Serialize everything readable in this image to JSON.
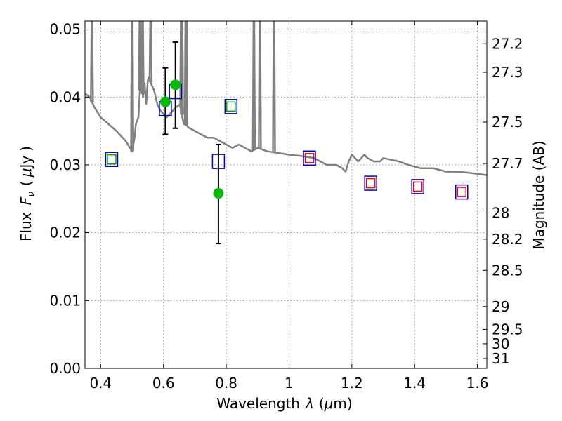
{
  "chart_data": {
    "type": "scatter",
    "xlabel": "Wavelength",
    "xlabel_symbol": "λ",
    "xlabel_unit_prefix": "(",
    "xlabel_unit_mu": "μ",
    "xlabel_unit_rest": "m)",
    "ylabel_word": "Flux",
    "ylabel_symbol": "F",
    "ylabel_subscript": "ν",
    "ylabel_paren_open": "(",
    "ylabel_mu": "μ",
    "ylabel_unit": "Jy",
    "ylabel_paren_close": ")",
    "y2label": "Magnitude (AB)",
    "xlim": [
      0.35,
      1.63
    ],
    "ylim": [
      0.0,
      0.0512
    ],
    "grid": true,
    "x_ticks": [
      0.4,
      0.6,
      0.8,
      1.0,
      1.2,
      1.4,
      1.6
    ],
    "x_tick_labels": [
      "0.4",
      "0.6",
      "0.8",
      "1",
      "1.2",
      "1.4",
      "1.6"
    ],
    "y_ticks": [
      0.0,
      0.01,
      0.02,
      0.03,
      0.04,
      0.05
    ],
    "y_tick_labels": [
      "0.00",
      "0.01",
      "0.02",
      "0.03",
      "0.04",
      "0.05"
    ],
    "y2_ticks": [
      27.2,
      27.3,
      27.5,
      27.7,
      28,
      28.2,
      28.5,
      29,
      29.5,
      30,
      31
    ],
    "y2_tick_labels": [
      "27.2",
      "27.3",
      "27.5",
      "27.7",
      "28",
      "28.2",
      "28.5",
      "29",
      "29.5",
      "30",
      "31"
    ],
    "colors": {
      "model": "#808080",
      "observed": "#00bb00",
      "model_flux_box": "#0000cc",
      "hst_box": "#00aa00",
      "ir_box": "#ff0000",
      "errorbar": "#000000"
    },
    "series": [
      {
        "kind": "model-spectrum",
        "x": [
          0.35,
          0.365,
          0.38,
          0.4,
          0.42,
          0.45,
          0.48,
          0.5,
          0.508,
          0.512,
          0.52,
          0.525,
          0.53,
          0.535,
          0.54,
          0.545,
          0.55,
          0.555,
          0.56,
          0.57,
          0.58,
          0.59,
          0.6,
          0.61,
          0.62,
          0.64,
          0.655,
          0.66,
          0.665,
          0.67,
          0.68,
          0.7,
          0.72,
          0.74,
          0.76,
          0.78,
          0.8,
          0.82,
          0.84,
          0.86,
          0.88,
          0.9,
          0.93,
          0.96,
          1.0,
          1.04,
          1.08,
          1.1,
          1.12,
          1.15,
          1.17,
          1.18,
          1.19,
          1.2,
          1.22,
          1.24,
          1.25,
          1.27,
          1.29,
          1.3,
          1.32,
          1.35,
          1.38,
          1.42,
          1.46,
          1.5,
          1.54,
          1.58,
          1.63
        ],
        "y": [
          0.0405,
          0.04,
          0.0385,
          0.037,
          0.0362,
          0.035,
          0.0335,
          0.032,
          0.034,
          0.036,
          0.037,
          0.041,
          0.0415,
          0.04,
          0.042,
          0.039,
          0.0425,
          0.043,
          0.042,
          0.041,
          0.039,
          0.038,
          0.0375,
          0.037,
          0.0375,
          0.0385,
          0.039,
          0.037,
          0.036,
          0.036,
          0.0355,
          0.035,
          0.0345,
          0.034,
          0.034,
          0.0335,
          0.033,
          0.0325,
          0.033,
          0.0325,
          0.032,
          0.0325,
          0.032,
          0.0318,
          0.0315,
          0.0313,
          0.031,
          0.0305,
          0.03,
          0.03,
          0.0295,
          0.029,
          0.0305,
          0.0315,
          0.0305,
          0.0315,
          0.031,
          0.0305,
          0.0305,
          0.031,
          0.0308,
          0.0305,
          0.03,
          0.0295,
          0.0295,
          0.029,
          0.029,
          0.0288,
          0.0285
        ]
      },
      {
        "kind": "emission-lines",
        "x": [
          0.372,
          0.5,
          0.5005,
          0.525,
          0.5335,
          0.559,
          0.6565,
          0.659,
          0.6585,
          0.671,
          0.673,
          0.888,
          0.907,
          0.952
        ]
      },
      {
        "kind": "observed",
        "x": [
          0.606,
          0.638,
          0.775
        ],
        "y": [
          0.0393,
          0.0418,
          0.0258
        ],
        "err_low": [
          0.0345,
          0.0354,
          0.0184
        ],
        "err_high": [
          0.0443,
          0.0481,
          0.033
        ]
      },
      {
        "kind": "model-flux",
        "x": [
          0.435,
          0.606,
          0.638,
          0.775,
          0.815,
          1.065,
          1.26,
          1.41,
          1.55
        ],
        "y": [
          0.0308,
          0.0383,
          0.0408,
          0.0305,
          0.0386,
          0.031,
          0.0273,
          0.0268,
          0.026
        ]
      },
      {
        "kind": "hst-optical",
        "x": [
          0.435,
          0.815
        ],
        "y": [
          0.0308,
          0.0386
        ]
      },
      {
        "kind": "ir",
        "x": [
          1.065,
          1.26,
          1.41,
          1.55
        ],
        "y": [
          0.031,
          0.0273,
          0.0268,
          0.026
        ]
      }
    ]
  }
}
